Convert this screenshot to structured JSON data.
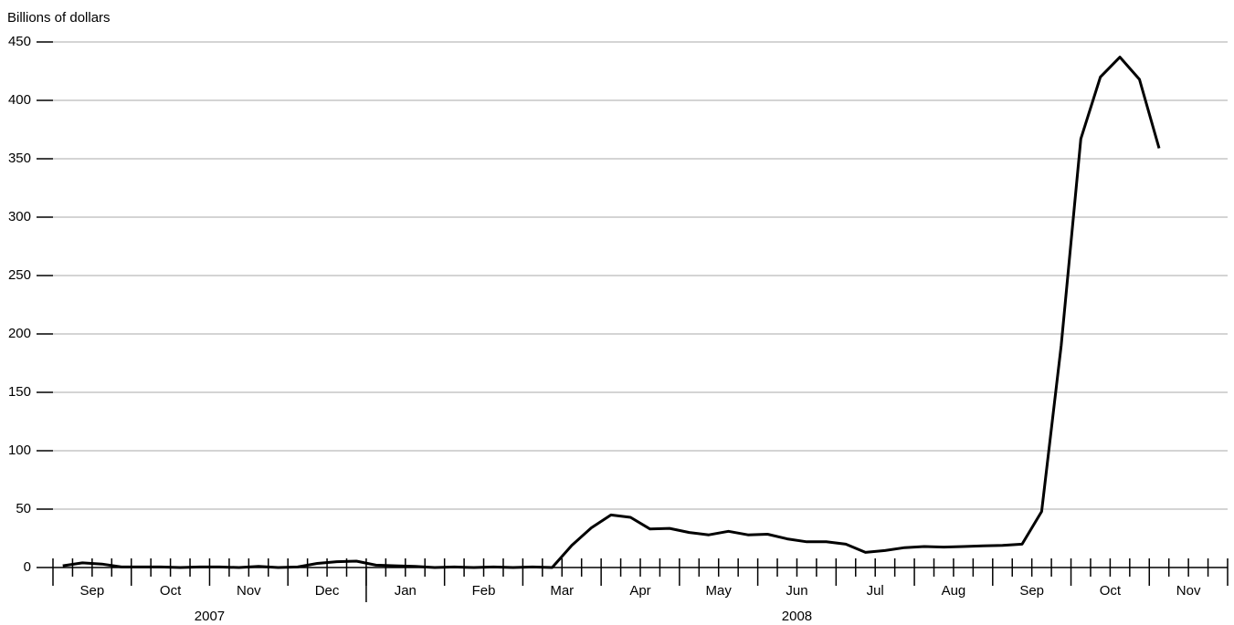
{
  "chart_data": {
    "type": "line",
    "y_label": "Billions of dollars",
    "categories": [
      null,
      null,
      null,
      null,
      null,
      null,
      null,
      null,
      null,
      null,
      null,
      null,
      null,
      null,
      null,
      null,
      null,
      null,
      null,
      null,
      null,
      null,
      null,
      null,
      null,
      null,
      null,
      null,
      null,
      null,
      null,
      null,
      null,
      null,
      null,
      null,
      null,
      null,
      null,
      null,
      null,
      null,
      null,
      null,
      null,
      null,
      null,
      null,
      null,
      null,
      null,
      null,
      null,
      null,
      null,
      null,
      null,
      null,
      null,
      null
    ],
    "values": [
      1.5,
      4,
      3,
      0.5,
      0.5,
      0.5,
      0,
      0.5,
      0.5,
      0,
      1,
      0,
      0.5,
      3.5,
      5,
      5.5,
      2,
      1.5,
      1,
      0,
      0.5,
      0,
      0.5,
      0,
      0.5,
      0,
      19,
      34,
      45,
      43,
      33,
      33.5,
      30,
      28,
      31,
      28,
      28.5,
      24.5,
      22,
      22,
      20,
      13,
      14.5,
      17,
      18,
      17.5,
      18,
      18.5,
      19,
      20,
      48,
      190,
      367,
      420,
      437,
      418,
      359,
      null,
      null,
      null
    ],
    "color": "#000000",
    "months": [
      "Sep",
      "Oct",
      "Nov",
      "Dec",
      "Jan",
      "Feb",
      "Mar",
      "Apr",
      "May",
      "Jun",
      "Jul",
      "Aug",
      "Sep",
      "Oct",
      "Nov"
    ],
    "years": [
      "2007",
      "2008"
    ],
    "ylim": [
      0,
      450
    ],
    "yticks": [
      0,
      50,
      100,
      150,
      200,
      250,
      300,
      350,
      400,
      450
    ],
    "grid": true
  }
}
